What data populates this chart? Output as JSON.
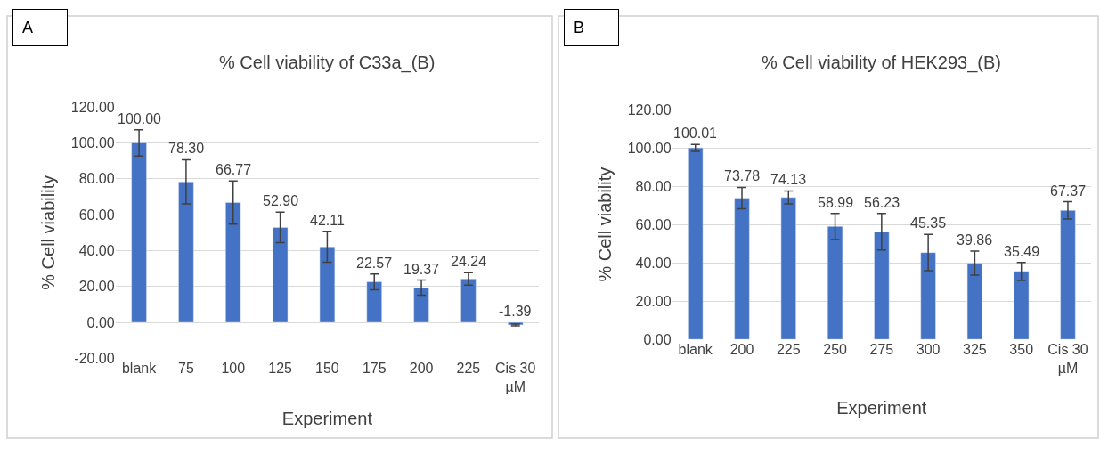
{
  "chart_data": [
    {
      "type": "bar",
      "title": "% Cell viability of C33a_(B)",
      "xlabel": "Experiment",
      "ylabel": "% Cell viability",
      "annotations": [
        "A"
      ],
      "categories": [
        "blank",
        "75",
        "100",
        "125",
        "150",
        "175",
        "200",
        "225",
        "Cis 30 µM"
      ],
      "values": [
        100.0,
        78.3,
        66.77,
        52.9,
        42.11,
        22.57,
        19.37,
        24.24,
        -1.39
      ],
      "value_labels": [
        "100.00",
        "78.30",
        "66.77",
        "52.90",
        "42.11",
        "22.57",
        "19.37",
        "24.24",
        "-1.39"
      ],
      "errors": [
        7.3,
        12.3,
        12,
        8.5,
        8.6,
        4.4,
        4.2,
        3.5,
        0.5
      ],
      "color": "#4472c4",
      "ylim": [
        -20,
        120
      ],
      "yticks": [
        {
          "value": -20,
          "label": "-20.00"
        },
        {
          "value": 0,
          "label": "0.00"
        },
        {
          "value": 20,
          "label": "20.00"
        },
        {
          "value": 40,
          "label": "40.00"
        },
        {
          "value": 60,
          "label": "60.00"
        },
        {
          "value": 80,
          "label": "80.00"
        },
        {
          "value": 100,
          "label": "100.00"
        },
        {
          "value": 120,
          "label": "120.00"
        }
      ],
      "grid": "y"
    },
    {
      "type": "bar",
      "title": "% Cell viability of HEK293_(B)",
      "xlabel": "Experiment",
      "ylabel": "% Cell viability",
      "annotations": [
        "B"
      ],
      "categories": [
        "blank",
        "200",
        "225",
        "250",
        "275",
        "300",
        "325",
        "350",
        "Cis 30 µM"
      ],
      "values": [
        100.01,
        73.78,
        74.13,
        58.99,
        56.23,
        45.35,
        39.86,
        35.49,
        67.37
      ],
      "value_labels": [
        "100.01",
        "73.78",
        "74.13",
        "58.99",
        "56.23",
        "45.35",
        "39.86",
        "35.49",
        "67.37"
      ],
      "errors": [
        1.8,
        5.6,
        3.4,
        6.8,
        9.5,
        9.5,
        6.3,
        4.7,
        4.5
      ],
      "color": "#4472c4",
      "ylim": [
        0,
        120
      ],
      "yticks": [
        {
          "value": 0,
          "label": "0.00"
        },
        {
          "value": 20,
          "label": "20.00"
        },
        {
          "value": 40,
          "label": "40.00"
        },
        {
          "value": 60,
          "label": "60.00"
        },
        {
          "value": 80,
          "label": "80.00"
        },
        {
          "value": 100,
          "label": "100.00"
        },
        {
          "value": 120,
          "label": "120.00"
        }
      ],
      "grid": "y"
    }
  ]
}
